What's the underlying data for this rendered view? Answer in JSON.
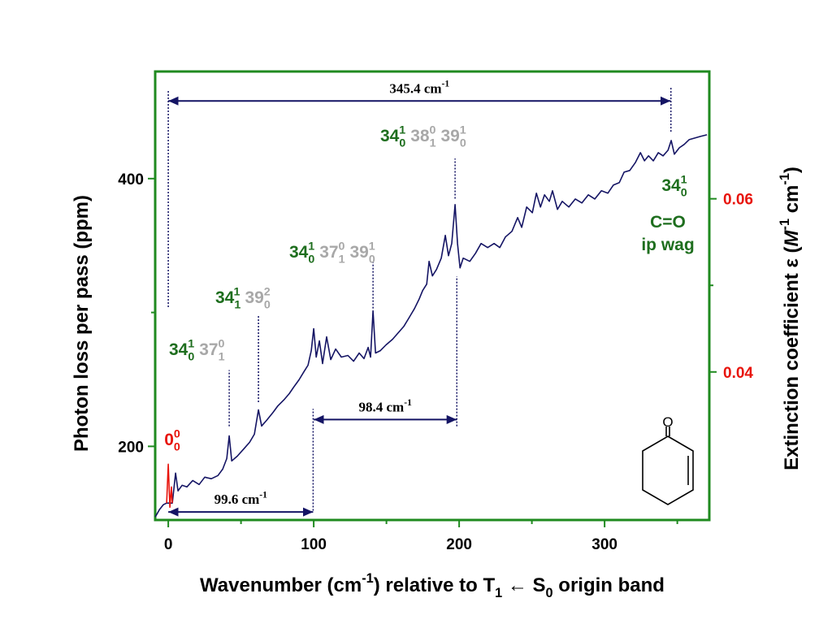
{
  "chart_data": {
    "type": "line",
    "xlabel": [
      {
        "text": "Wavenumber (cm",
        "sup": "-1"
      },
      {
        "text": ") relative to T",
        "sub": "1"
      },
      {
        "text": " ← S",
        "sub": "0"
      },
      {
        "text": " origin band"
      }
    ],
    "ylabel": "Photon loss per pass (ppm)",
    "y2label": [
      {
        "text": "Extinction coefficient ε ("
      },
      {
        "text": "M",
        "italic": true,
        "sup": "-1"
      },
      {
        "text": " cm",
        "sup": "-1"
      },
      {
        "text": ")"
      }
    ],
    "xlim": [
      -9,
      372
    ],
    "ylim": [
      145,
      480
    ],
    "y2lim": [
      0.0229,
      0.0747
    ],
    "xticks": [
      0,
      100,
      200,
      300
    ],
    "xminorticks": [
      50,
      150,
      250,
      350
    ],
    "yticks": [
      200,
      400
    ],
    "yminorticks": [
      300
    ],
    "y2ticks": [
      0.04,
      0.06
    ],
    "y2minorticks": [
      0.05
    ],
    "frame_color": "#1f8a1f",
    "y2tick_color": "#e8140c",
    "series": [
      {
        "color": "#141464",
        "x": [
          -8.9,
          -6.1,
          -3.4,
          -1.1,
          2.8,
          5.0,
          6.7,
          9.5,
          12.8,
          16.8,
          21.2,
          25.1,
          29.6,
          34.1,
          37.4,
          40.2,
          41.9,
          43.6,
          47.5,
          52.0,
          55.9,
          59.2,
          62.0,
          64.2,
          67.6,
          72.1,
          75.4,
          79.9,
          83.2,
          86.6,
          89.9,
          93.3,
          96.1,
          98.3,
          100.0,
          101.7,
          103.9,
          106.1,
          108.9,
          111.7,
          115.1,
          119.0,
          123.5,
          127.4,
          131.3,
          134.6,
          137.4,
          139.1,
          140.8,
          142.5,
          145.8,
          149.7,
          154.2,
          158.1,
          162.0,
          165.4,
          169.3,
          172.6,
          174.9,
          177.7,
          179.3,
          181.6,
          184.4,
          187.7,
          190.5,
          192.7,
          194.9,
          197.2,
          198.9,
          200.6,
          202.8,
          207.3,
          211.2,
          215.1,
          219.6,
          224.0,
          227.9,
          231.8,
          236.3,
          240.2,
          243.0,
          246.4,
          250.3,
          253.1,
          255.9,
          258.7,
          262.0,
          264.2,
          267.6,
          270.9,
          275.4,
          279.9,
          284.4,
          288.8,
          293.3,
          297.8,
          302.2,
          306.1,
          310.1,
          313.4,
          317.3,
          321.2,
          324.6,
          327.4,
          330.2,
          333.5,
          336.9,
          340.2,
          343.6,
          345.8,
          348.0,
          351.4,
          354.7,
          358.1,
          362.0,
          365.9,
          370.4
        ],
        "values": [
          147.3,
          152.7,
          156.4,
          157.6,
          157.6,
          180.0,
          166.7,
          170.9,
          169.7,
          174.5,
          171.5,
          177.0,
          175.8,
          178.2,
          183.0,
          190.9,
          207.9,
          189.1,
          192.7,
          198.2,
          203.0,
          209.1,
          227.3,
          215.2,
          219.4,
          225.5,
          230.3,
          235.2,
          239.4,
          244.8,
          249.7,
          255.8,
          260.6,
          271.5,
          287.9,
          266.7,
          278.8,
          261.8,
          281.8,
          264.8,
          272.7,
          266.7,
          267.9,
          263.6,
          269.7,
          265.5,
          273.9,
          266.7,
          301.2,
          269.7,
          271.5,
          275.8,
          280.0,
          284.8,
          289.7,
          295.8,
          303.0,
          310.3,
          316.4,
          321.2,
          338.2,
          327.3,
          332.1,
          340.6,
          357.6,
          342.4,
          351.5,
          380.6,
          351.5,
          333.3,
          340.6,
          338.2,
          344.2,
          351.5,
          348.5,
          351.5,
          348.5,
          356.4,
          360.6,
          370.9,
          363.6,
          378.8,
          374.5,
          389.1,
          378.8,
          387.9,
          383.0,
          390.9,
          377.0,
          383.0,
          378.8,
          384.8,
          381.8,
          387.9,
          384.8,
          390.9,
          389.1,
          395.2,
          397.0,
          404.8,
          406.1,
          412.1,
          419.4,
          413.3,
          417.0,
          413.3,
          419.4,
          417.0,
          421.2,
          428.5,
          418.2,
          423.0,
          425.5,
          429.1,
          430.3,
          431.5,
          432.7
        ]
      },
      {
        "color": "#e8140c",
        "x": [
          -1.1,
          0.0,
          1.1,
          2.2,
          2.8
        ],
        "values": [
          157.6,
          186.7,
          154.5,
          169.7,
          157.6
        ]
      }
    ],
    "guides": [
      {
        "x": 0,
        "y": [
          304,
          466
        ]
      },
      {
        "x": 345.6,
        "y": [
          435,
          468
        ]
      },
      {
        "x": 99.6,
        "y": [
          152,
          228
        ]
      },
      {
        "x": 198.4,
        "y": [
          215,
          327
        ]
      },
      {
        "x": 41.9,
        "y": [
          215,
          257
        ]
      },
      {
        "x": 62.0,
        "y": [
          233,
          298
        ]
      },
      {
        "x": 140.8,
        "y": [
          303,
          338
        ]
      },
      {
        "x": 197.2,
        "y": [
          385,
          415
        ]
      }
    ],
    "intervals": [
      {
        "from": 0,
        "to": 345.4,
        "y": 458,
        "label": [
          {
            "text": "345.4 cm",
            "sup": "-1"
          }
        ]
      },
      {
        "from": 100,
        "to": 198.4,
        "y": 220,
        "label": [
          {
            "text": "98.4 cm",
            "sup": "-1"
          }
        ]
      },
      {
        "from": 0,
        "to": 99.6,
        "y": 151,
        "label": [
          {
            "text": "99.6 cm",
            "sup": "-1"
          }
        ]
      }
    ],
    "peak_labels": [
      [
        {
          "text": "0",
          "sub": "0",
          "sup": "0",
          "color": "#e8140c"
        }
      ],
      [
        {
          "text": "34",
          "sub": "0",
          "sup": "1",
          "color": "#1e6e1e"
        },
        {
          "text": "37",
          "sub": "1",
          "sup": "0",
          "color": "#a8a8a8"
        }
      ],
      [
        {
          "text": "34",
          "sub": "1",
          "sup": "1",
          "color": "#1e6e1e"
        },
        {
          "text": "39",
          "sub": "0",
          "sup": "2",
          "color": "#a8a8a8"
        }
      ],
      [
        {
          "text": "34",
          "sub": "0",
          "sup": "1",
          "color": "#1e6e1e"
        },
        {
          "text": "37",
          "sub": "1",
          "sup": "0",
          "color": "#a8a8a8"
        },
        {
          "text": "39",
          "sub": "0",
          "sup": "1",
          "color": "#a8a8a8"
        }
      ],
      [
        {
          "text": "34",
          "sub": "0",
          "sup": "1",
          "color": "#1e6e1e"
        },
        {
          "text": "38",
          "sub": "1",
          "sup": "0",
          "color": "#a8a8a8"
        },
        {
          "text": "39",
          "sub": "0",
          "sup": "1",
          "color": "#a8a8a8"
        }
      ],
      [
        {
          "text": "34",
          "sub": "0",
          "sup": "1",
          "color": "#1e6e1e"
        }
      ]
    ],
    "mode_notes": [
      "C=O",
      "ip wag"
    ]
  }
}
